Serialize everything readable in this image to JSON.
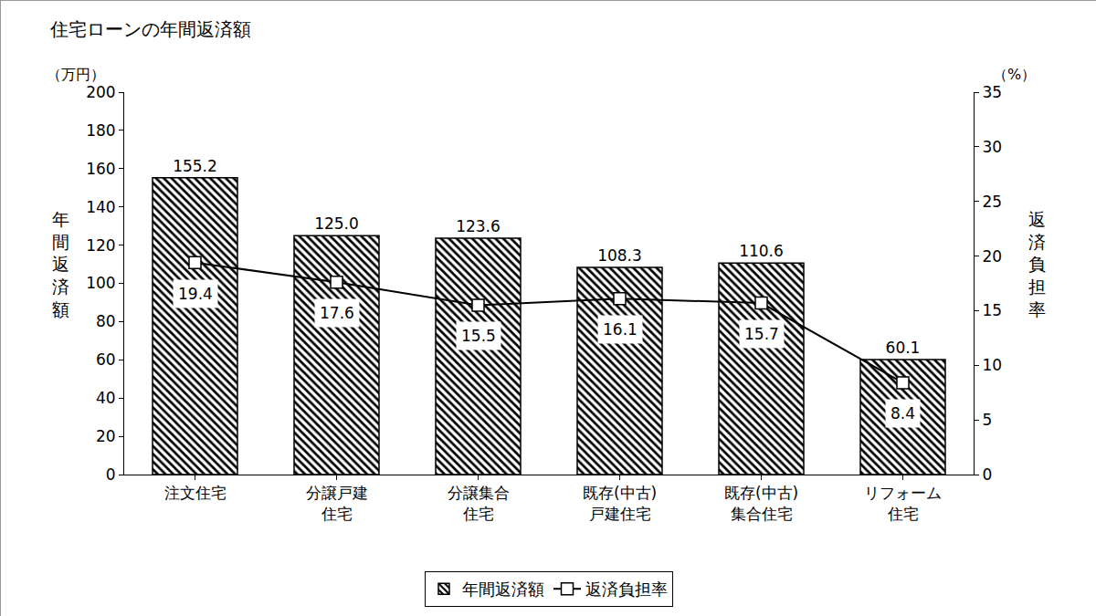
{
  "chart_data": {
    "type": "bar",
    "title": "住宅ローンの年間返済額",
    "y_label": "年間返済額",
    "y_unit": "（万円）",
    "y2_label": "返済負担率",
    "y2_unit": "（%）",
    "categories": [
      "注文住宅",
      "分譲戸建\n住宅",
      "分譲集合\n住宅",
      "既存(中古)\n戸建住宅",
      "既存(中古)\n集合住宅",
      "リフォーム\n住宅"
    ],
    "series": [
      {
        "name": "年間返済額",
        "type": "bar",
        "color": "#000000",
        "marker": "hatch",
        "values": [
          155.2,
          125.0,
          123.6,
          108.3,
          110.6,
          60.1
        ],
        "value_labels": [
          "155.2",
          "125.0",
          "123.6",
          "108.3",
          "110.6",
          "60.1"
        ]
      },
      {
        "name": "返済負担率",
        "type": "line",
        "axis": "y2",
        "color": "#000000",
        "marker": "square",
        "line_style": "solid",
        "values": [
          19.4,
          17.6,
          15.5,
          16.1,
          15.7,
          8.4
        ],
        "value_labels": [
          "19.4",
          "17.6",
          "15.5",
          "16.1",
          "15.7",
          "8.4"
        ]
      }
    ],
    "ylim": [
      0,
      200
    ],
    "yticks": [
      0,
      20,
      40,
      60,
      80,
      100,
      120,
      140,
      160,
      180,
      200
    ],
    "y2lim": [
      0,
      35
    ],
    "y2ticks": [
      0,
      5,
      10,
      15,
      20,
      25,
      30,
      35
    ],
    "grid": false,
    "legend": "bottom",
    "data_labels": true
  }
}
